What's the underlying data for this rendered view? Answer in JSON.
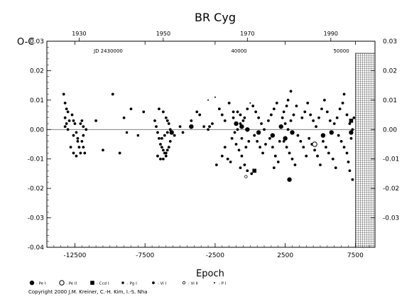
{
  "chart_data": {
    "type": "scatter",
    "title": "BR Cyg",
    "ylabel": "O-C",
    "xlabel": "Epoch",
    "xlim": [
      -14500,
      8900
    ],
    "ylim": [
      -0.04,
      0.03
    ],
    "grid": false,
    "x_ticks": [
      "-12500",
      "-7500",
      "-2500",
      "2500",
      "7500"
    ],
    "x_tick_values": [
      -12500,
      -7500,
      -2500,
      2500,
      7500
    ],
    "y_ticks": [
      "-0.04",
      "-0.03",
      "-0.02",
      "-0.01",
      "0.00",
      "0.01",
      "0.02",
      "0.03"
    ],
    "y_tick_values": [
      -0.04,
      -0.03,
      -0.02,
      -0.01,
      0.0,
      0.01,
      0.02,
      0.03
    ],
    "right_y_ticks": [
      "-0.03",
      "-0.02",
      "-0.01",
      "0.00",
      "0.01",
      "0.02",
      "0.03"
    ],
    "right_y_tick_values": [
      -0.03,
      -0.02,
      -0.01,
      0.0,
      0.01,
      0.02,
      0.03
    ],
    "year_ticks": [
      {
        "label": "1930",
        "epoch": -12200
      },
      {
        "label": "1950",
        "epoch": -6200
      },
      {
        "label": "1970",
        "epoch": -200
      },
      {
        "label": "1990",
        "epoch": 5750
      }
    ],
    "jd_label": "JD 2430000",
    "jd_ticks": [
      {
        "label": "40000",
        "epoch": -800
      },
      {
        "label": "50000",
        "epoch": 6500
      }
    ],
    "hatched_region_x": [
      7500,
      8900
    ],
    "legend": [
      {
        "label": ": Pe I",
        "symbol": "filled-circle-large"
      },
      {
        "label": ": Pe II",
        "symbol": "open-circle"
      },
      {
        "label": ": Ccd I",
        "symbol": "filled-square"
      },
      {
        "label": ": Pg I",
        "symbol": "small-square"
      },
      {
        "label": ": Vi I",
        "symbol": "small-dot"
      },
      {
        "label": ": Vi II",
        "symbol": "small-open-circle"
      },
      {
        "label": ": P I",
        "symbol": "tiny-dot"
      }
    ],
    "series": [
      {
        "type": "Pe I",
        "points": [
          [
            -4200,
            0.001
          ],
          [
            -1000,
            0.002
          ],
          [
            -600,
            0.001
          ],
          [
            -200,
            0.0
          ],
          [
            600,
            -0.001
          ],
          [
            1600,
            -0.002
          ],
          [
            2200,
            0.001
          ],
          [
            2500,
            -0.003
          ],
          [
            3000,
            -0.001
          ],
          [
            5200,
            -0.002
          ],
          [
            5800,
            -0.001
          ],
          [
            7200,
            -0.001
          ],
          [
            -5600,
            -0.001
          ],
          [
            2800,
            -0.017
          ]
        ]
      },
      {
        "type": "Pe II",
        "points": [
          [
            4600,
            -0.005
          ]
        ]
      },
      {
        "type": "Ccd I",
        "points": [
          [
            7200,
            0.003
          ],
          [
            300,
            -0.014
          ]
        ]
      },
      {
        "type": "Pg I",
        "points": [
          [
            -8800,
            -0.001
          ],
          [
            -8000,
            -0.002
          ]
        ]
      },
      {
        "type": "Vi I",
        "points": [
          [
            -13300,
            0.012
          ],
          [
            -13200,
            0.009
          ],
          [
            -13100,
            0.007
          ],
          [
            -13000,
            0.006
          ],
          [
            -12900,
            0.003
          ],
          [
            -13200,
            0.004
          ],
          [
            -13100,
            0.002
          ],
          [
            -13000,
            0.0
          ],
          [
            -13200,
            0.001
          ],
          [
            -12700,
            0.005
          ],
          [
            -12600,
            0.003
          ],
          [
            -12500,
            0.002
          ],
          [
            -12400,
            -0.001
          ],
          [
            -12300,
            -0.003
          ],
          [
            -12800,
            -0.006
          ],
          [
            -12600,
            -0.008
          ],
          [
            -12400,
            -0.009
          ],
          [
            -12200,
            -0.006
          ],
          [
            -12300,
            -0.004
          ],
          [
            -12600,
            -0.002
          ],
          [
            -12000,
            -0.004
          ],
          [
            -11900,
            -0.006
          ],
          [
            -12100,
            -0.008
          ],
          [
            -11800,
            -0.008
          ],
          [
            -12000,
            0.003
          ],
          [
            -11900,
            0.001
          ],
          [
            -11700,
            0.0
          ],
          [
            -12100,
            0.002
          ],
          [
            -11900,
            -0.002
          ],
          [
            -11000,
            0.003
          ],
          [
            -10500,
            -0.007
          ],
          [
            -9800,
            0.012
          ],
          [
            -9300,
            -0.008
          ],
          [
            -9000,
            0.004
          ],
          [
            -8500,
            0.007
          ],
          [
            -7600,
            0.006
          ],
          [
            -6800,
            0.003
          ],
          [
            -6700,
            0.001
          ],
          [
            -6600,
            -0.001
          ],
          [
            -6500,
            -0.003
          ],
          [
            -6400,
            -0.005
          ],
          [
            -6300,
            -0.006
          ],
          [
            -6200,
            -0.007
          ],
          [
            -6100,
            -0.008
          ],
          [
            -6000,
            -0.009
          ],
          [
            -5900,
            -0.007
          ],
          [
            -6600,
            -0.009
          ],
          [
            -6400,
            -0.01
          ],
          [
            -6200,
            -0.01
          ],
          [
            -6000,
            -0.008
          ],
          [
            -5800,
            -0.006
          ],
          [
            -6300,
            -0.003
          ],
          [
            -6100,
            -0.002
          ],
          [
            -5900,
            -0.001
          ],
          [
            -5700,
            0.0
          ],
          [
            -5800,
            0.002
          ],
          [
            -6500,
            0.007
          ],
          [
            -6200,
            0.006
          ],
          [
            -6000,
            0.004
          ],
          [
            -5900,
            0.003
          ],
          [
            -5700,
            -0.004
          ],
          [
            -5400,
            -0.002
          ],
          [
            -5000,
            0.001
          ],
          [
            -4800,
            -0.001
          ],
          [
            -4200,
            0.003
          ],
          [
            -3800,
            0.006
          ],
          [
            -3600,
            0.005
          ],
          [
            -3300,
            0.001
          ],
          [
            -3000,
            0.0
          ],
          [
            -2900,
            0.001
          ],
          [
            -2700,
            0.002
          ],
          [
            -2200,
            0.007
          ],
          [
            -2000,
            0.005
          ],
          [
            -1800,
            0.003
          ],
          [
            -1500,
            0.009
          ],
          [
            -1200,
            0.006
          ],
          [
            -2400,
            -0.012
          ],
          [
            -2000,
            -0.009
          ],
          [
            -1800,
            -0.006
          ],
          [
            -1600,
            -0.01
          ],
          [
            -1400,
            -0.011
          ],
          [
            -1300,
            -0.003
          ],
          [
            -1100,
            -0.001
          ],
          [
            -900,
            0.0
          ],
          [
            -700,
            0.002
          ],
          [
            -500,
            0.003
          ],
          [
            -1200,
            0.004
          ],
          [
            -900,
            0.006
          ],
          [
            -700,
            0.005
          ],
          [
            -400,
            0.004
          ],
          [
            -200,
            0.007
          ],
          [
            -1000,
            -0.005
          ],
          [
            -800,
            -0.007
          ],
          [
            -600,
            -0.009
          ],
          [
            -300,
            -0.006
          ],
          [
            -100,
            -0.004
          ],
          [
            -700,
            -0.013
          ],
          [
            -400,
            -0.012
          ],
          [
            -200,
            -0.014
          ],
          [
            100,
            -0.015
          ],
          [
            -600,
            -0.003
          ],
          [
            200,
            0.008
          ],
          [
            400,
            0.006
          ],
          [
            600,
            0.004
          ],
          [
            800,
            0.002
          ],
          [
            1000,
            0.0
          ],
          [
            300,
            -0.002
          ],
          [
            500,
            -0.004
          ],
          [
            700,
            -0.006
          ],
          [
            900,
            -0.008
          ],
          [
            1100,
            -0.005
          ],
          [
            1300,
            0.003
          ],
          [
            1500,
            0.005
          ],
          [
            1700,
            0.007
          ],
          [
            1900,
            0.009
          ],
          [
            1400,
            -0.003
          ],
          [
            1600,
            -0.006
          ],
          [
            1800,
            -0.009
          ],
          [
            2000,
            -0.011
          ],
          [
            1700,
            -0.013
          ],
          [
            2100,
            -0.004
          ],
          [
            2300,
            0.004
          ],
          [
            2400,
            0.006
          ],
          [
            2600,
            0.008
          ],
          [
            2700,
            0.01
          ],
          [
            2900,
            0.013
          ],
          [
            2400,
            -0.004
          ],
          [
            2600,
            -0.006
          ],
          [
            2800,
            -0.008
          ],
          [
            3000,
            -0.01
          ],
          [
            3200,
            -0.012
          ],
          [
            2500,
            0.002
          ],
          [
            2700,
            0.0
          ],
          [
            2900,
            0.003
          ],
          [
            3100,
            0.005
          ],
          [
            3300,
            0.008
          ],
          [
            3400,
            -0.002
          ],
          [
            3600,
            -0.004
          ],
          [
            3800,
            -0.006
          ],
          [
            4000,
            -0.009
          ],
          [
            3700,
            0.004
          ],
          [
            3900,
            0.006
          ],
          [
            4100,
            0.009
          ],
          [
            4300,
            0.005
          ],
          [
            4500,
            0.003
          ],
          [
            4700,
            0.001
          ],
          [
            4200,
            -0.003
          ],
          [
            4400,
            -0.005
          ],
          [
            4600,
            -0.007
          ],
          [
            4800,
            -0.009
          ],
          [
            5000,
            -0.012
          ],
          [
            4900,
            0.004
          ],
          [
            5100,
            0.007
          ],
          [
            5300,
            0.01
          ],
          [
            5500,
            0.006
          ],
          [
            5700,
            0.003
          ],
          [
            5200,
            -0.004
          ],
          [
            5400,
            -0.006
          ],
          [
            5600,
            -0.008
          ],
          [
            5900,
            -0.01
          ],
          [
            6100,
            -0.013
          ],
          [
            6000,
            0.002
          ],
          [
            6200,
            0.004
          ],
          [
            6400,
            0.007
          ],
          [
            6600,
            0.009
          ],
          [
            6700,
            0.012
          ],
          [
            6300,
            -0.002
          ],
          [
            6500,
            -0.004
          ],
          [
            6700,
            -0.006
          ],
          [
            6900,
            -0.008
          ],
          [
            7000,
            -0.011
          ],
          [
            6900,
            0.005
          ],
          [
            7100,
            0.002
          ],
          [
            7300,
            0.0
          ],
          [
            7200,
            -0.003
          ],
          [
            7400,
            0.004
          ],
          [
            7100,
            -0.014
          ],
          [
            7300,
            -0.017
          ]
        ]
      },
      {
        "type": "Vi II",
        "points": [
          [
            -300,
            -0.016
          ]
        ]
      },
      {
        "type": "P I",
        "points": [
          [
            -3000,
            0.01
          ],
          [
            -2500,
            0.011
          ],
          [
            0,
            0.009
          ]
        ]
      }
    ]
  },
  "copyright": "Copyright 2000 J.M. Kreiner, C.-H. Kim, I.-S. Nha"
}
